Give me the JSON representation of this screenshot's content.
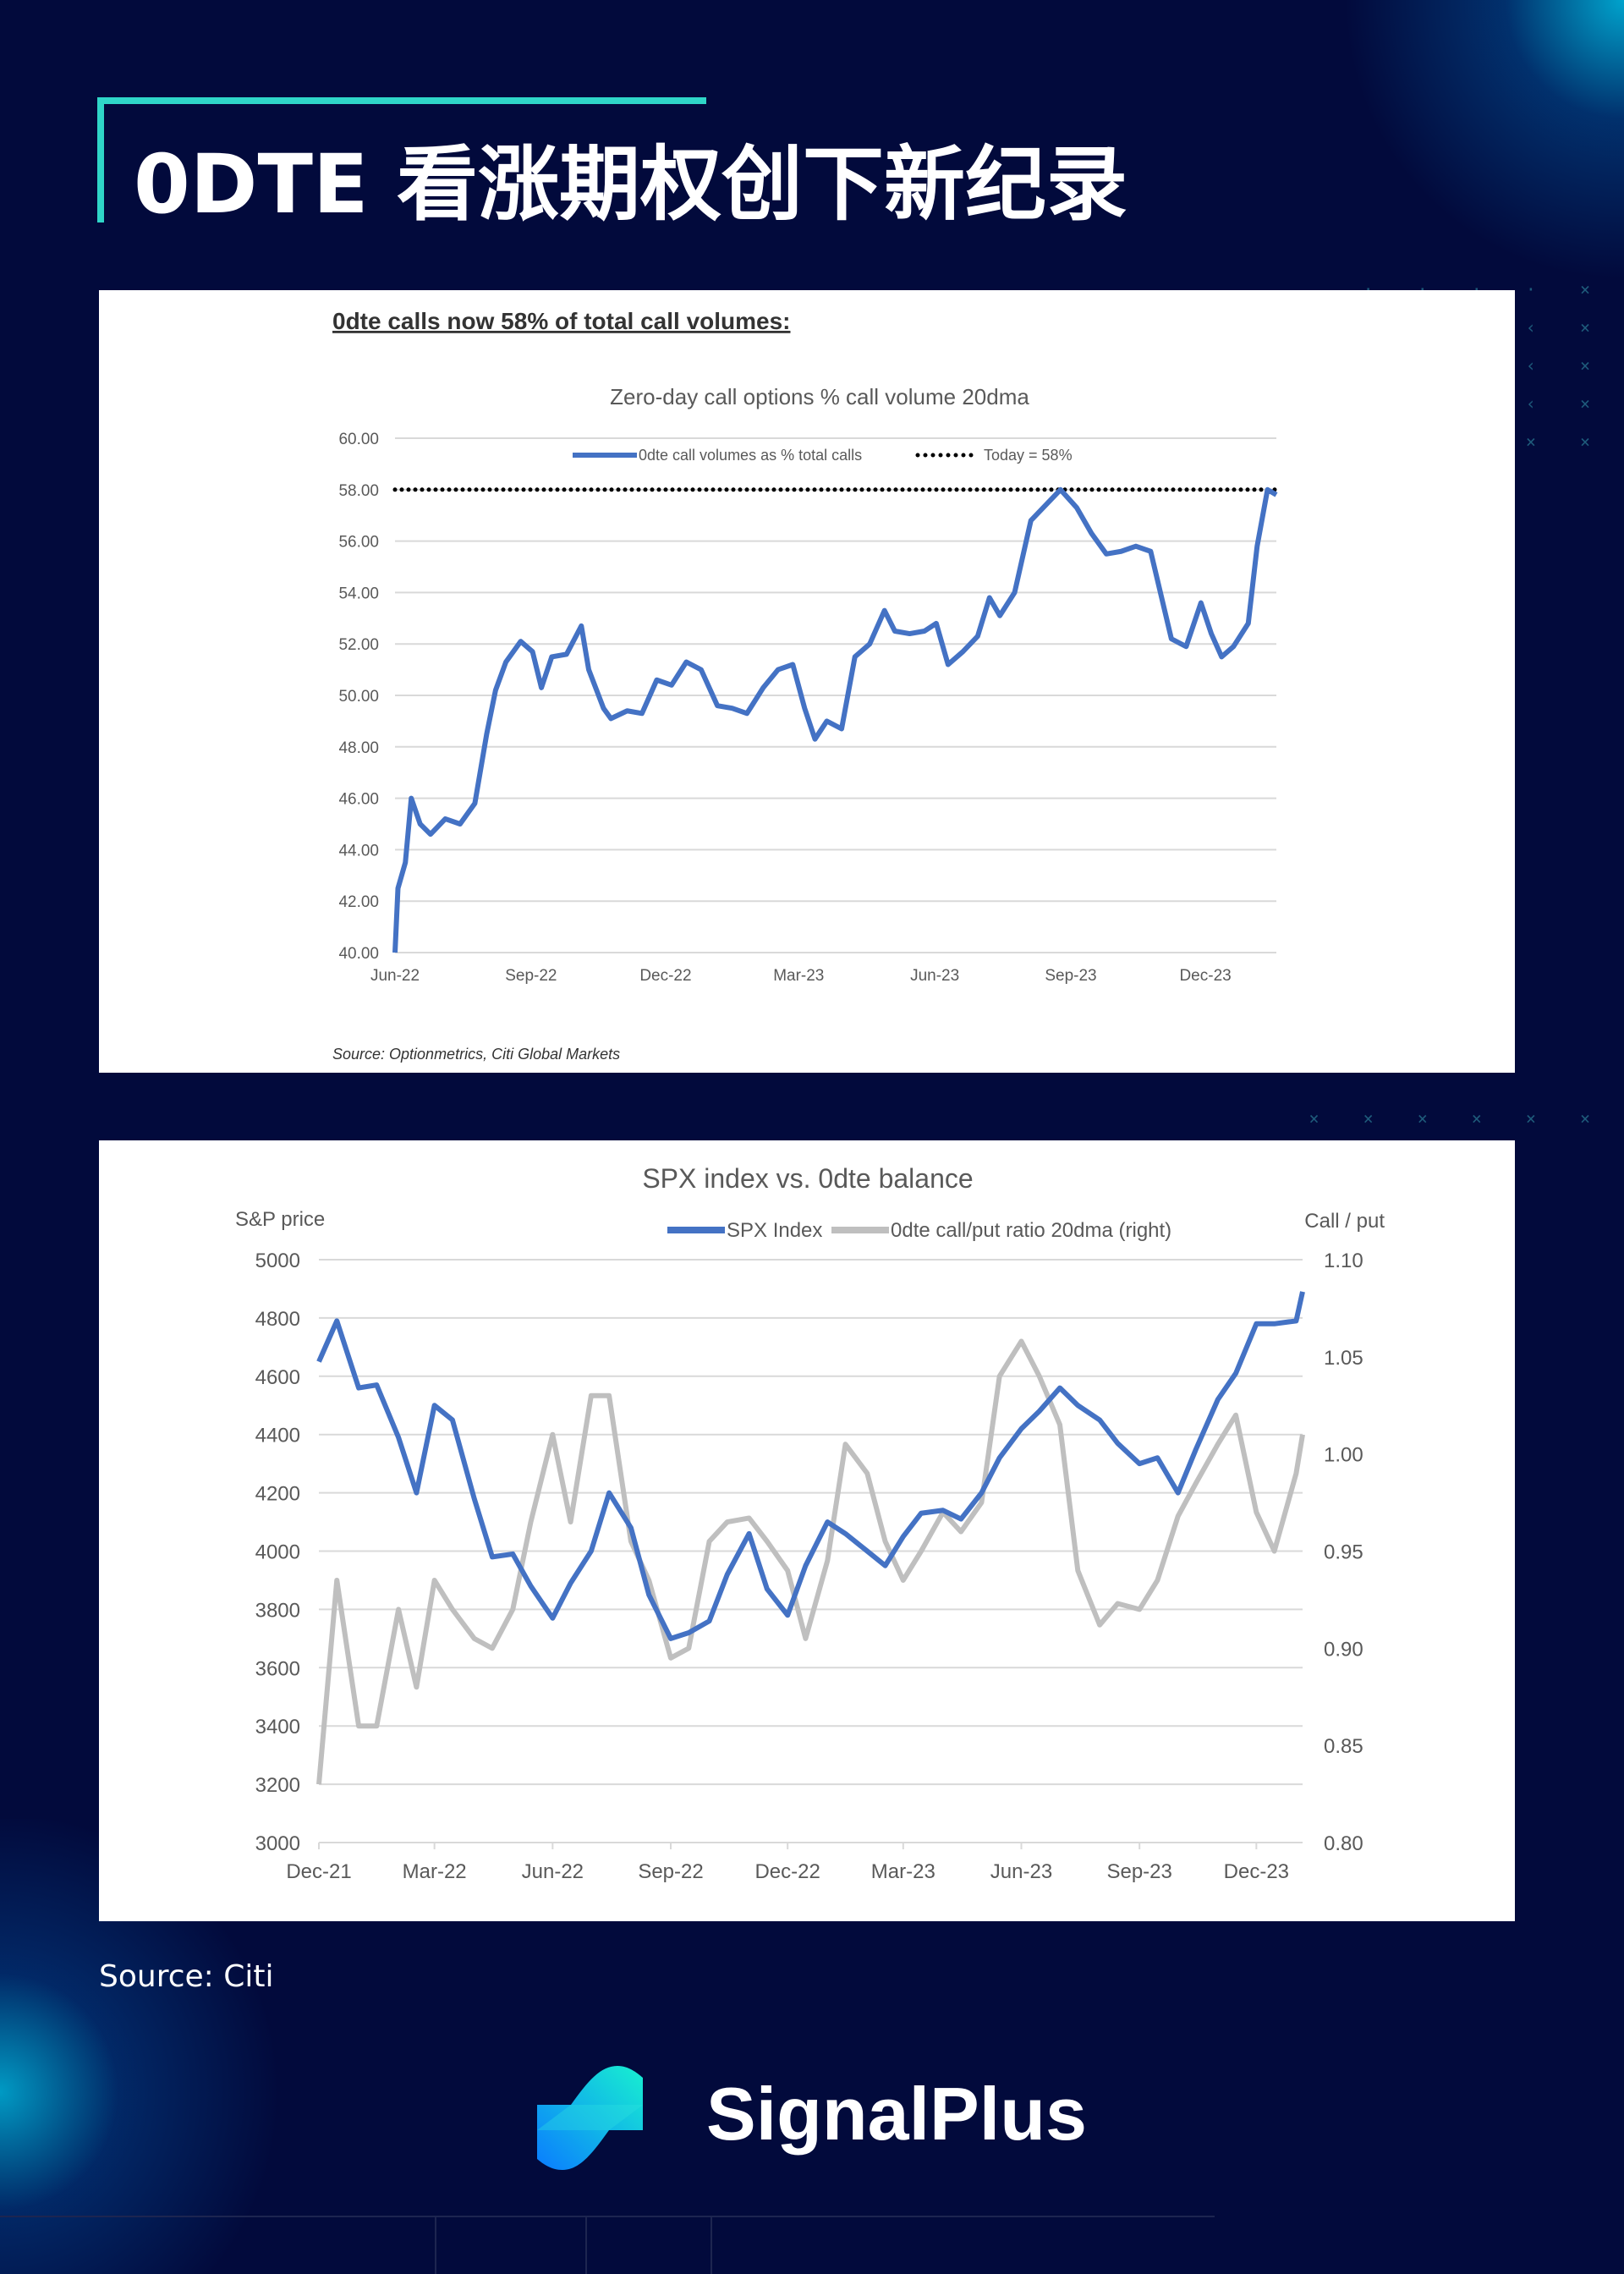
{
  "page": {
    "title": "0DTE 看涨期权创下新纪录",
    "source": "Source: Citi",
    "brand": "SignalPlus",
    "colors": {
      "background": "#020a3c",
      "accent": "#2fd6c8",
      "series_blue": "#4472c4",
      "series_grey": "#bfbfbf"
    }
  },
  "chart_data": [
    {
      "type": "line",
      "headline": "0dte calls now 58% of total call volumes:",
      "title": "Zero-day call options % call volume 20dma",
      "source": "Source: Optionmetrics, Citi Global Markets",
      "ylim": [
        40,
        60
      ],
      "yticks": [
        "40.00",
        "42.00",
        "44.00",
        "46.00",
        "48.00",
        "50.00",
        "52.00",
        "54.00",
        "56.00",
        "58.00",
        "60.00"
      ],
      "xticks": [
        {
          "label": "Jun-22",
          "date": "2022-06-01"
        },
        {
          "label": "Sep-22",
          "date": "2022-09-01"
        },
        {
          "label": "Dec-22",
          "date": "2022-12-01"
        },
        {
          "label": "Mar-23",
          "date": "2023-03-01"
        },
        {
          "label": "Jun-23",
          "date": "2023-06-01"
        },
        {
          "label": "Sep-23",
          "date": "2023-09-01"
        },
        {
          "label": "Dec-23",
          "date": "2023-12-01"
        }
      ],
      "grid": true,
      "legend_position": "top",
      "reference_line": {
        "name": "Today = 58%",
        "value": 58,
        "style": "dotted",
        "color": "#000000"
      },
      "series": [
        {
          "name": "0dte call volumes as % total calls",
          "color": "#4472c4",
          "x": [
            "2022-06-01",
            "2022-06-03",
            "2022-06-08",
            "2022-06-12",
            "2022-06-18",
            "2022-06-25",
            "2022-07-05",
            "2022-07-15",
            "2022-07-25",
            "2022-08-02",
            "2022-08-08",
            "2022-08-15",
            "2022-08-25",
            "2022-09-02",
            "2022-09-08",
            "2022-09-15",
            "2022-09-25",
            "2022-10-05",
            "2022-10-10",
            "2022-10-20",
            "2022-10-25",
            "2022-11-05",
            "2022-11-15",
            "2022-11-25",
            "2022-12-05",
            "2022-12-15",
            "2022-12-25",
            "2023-01-05",
            "2023-01-15",
            "2023-01-25",
            "2023-02-05",
            "2023-02-15",
            "2023-02-25",
            "2023-03-05",
            "2023-03-12",
            "2023-03-20",
            "2023-03-30",
            "2023-04-08",
            "2023-04-18",
            "2023-04-28",
            "2023-05-05",
            "2023-05-15",
            "2023-05-25",
            "2023-06-02",
            "2023-06-10",
            "2023-06-20",
            "2023-06-30",
            "2023-07-08",
            "2023-07-15",
            "2023-07-25",
            "2023-08-05",
            "2023-08-15",
            "2023-08-25",
            "2023-09-05",
            "2023-09-15",
            "2023-09-25",
            "2023-10-05",
            "2023-10-15",
            "2023-10-25",
            "2023-11-01",
            "2023-11-08",
            "2023-11-18",
            "2023-11-28",
            "2023-12-05",
            "2023-12-12",
            "2023-12-20",
            "2023-12-30",
            "2024-01-05",
            "2024-01-12",
            "2024-01-18"
          ],
          "values": [
            40,
            42.5,
            43.5,
            46,
            45,
            44.6,
            45.2,
            45,
            45.8,
            48.5,
            50.2,
            51.3,
            52.1,
            51.7,
            50.3,
            51.5,
            51.6,
            52.7,
            51,
            49.5,
            49.1,
            49.4,
            49.3,
            50.6,
            50.4,
            51.3,
            51,
            49.6,
            49.5,
            49.3,
            50.3,
            51,
            51.2,
            49.5,
            48.3,
            49,
            48.7,
            51.5,
            52,
            53.3,
            52.5,
            52.4,
            52.5,
            52.8,
            51.2,
            51.7,
            52.3,
            53.8,
            53.1,
            54,
            56.8,
            57.4,
            58,
            57.3,
            56.3,
            55.5,
            55.6,
            55.8,
            55.6,
            53.9,
            52.2,
            51.9,
            53.6,
            52.4,
            51.5,
            51.9,
            52.8,
            55.8,
            58,
            57.8
          ]
        }
      ]
    },
    {
      "type": "line",
      "title": "SPX index vs. 0dte balance",
      "ylabel_left": "S&P price",
      "ylabel_right": "Call / put",
      "ylim_left": [
        3000,
        5000
      ],
      "ylim_right": [
        0.8,
        1.1
      ],
      "yticks_left": [
        "3000",
        "3200",
        "3400",
        "3600",
        "3800",
        "4000",
        "4200",
        "4400",
        "4600",
        "4800",
        "5000"
      ],
      "yticks_right": [
        "0.80",
        "0.85",
        "0.90",
        "0.95",
        "1.00",
        "1.05",
        "1.10"
      ],
      "xticks": [
        {
          "label": "Dec-21",
          "date": "2021-12-01"
        },
        {
          "label": "Mar-22",
          "date": "2022-03-01"
        },
        {
          "label": "Jun-22",
          "date": "2022-06-01"
        },
        {
          "label": "Sep-22",
          "date": "2022-09-01"
        },
        {
          "label": "Dec-22",
          "date": "2022-12-01"
        },
        {
          "label": "Mar-23",
          "date": "2023-03-01"
        },
        {
          "label": "Jun-23",
          "date": "2023-06-01"
        },
        {
          "label": "Sep-23",
          "date": "2023-09-01"
        },
        {
          "label": "Dec-23",
          "date": "2023-12-01"
        }
      ],
      "grid": true,
      "legend_position": "top",
      "x": [
        "2021-12-01",
        "2021-12-15",
        "2022-01-01",
        "2022-01-15",
        "2022-02-01",
        "2022-02-15",
        "2022-03-01",
        "2022-03-15",
        "2022-04-01",
        "2022-04-15",
        "2022-05-01",
        "2022-05-15",
        "2022-06-01",
        "2022-06-15",
        "2022-07-01",
        "2022-07-15",
        "2022-08-01",
        "2022-08-15",
        "2022-09-01",
        "2022-09-15",
        "2022-10-01",
        "2022-10-15",
        "2022-11-01",
        "2022-11-15",
        "2022-12-01",
        "2022-12-15",
        "2023-01-01",
        "2023-01-15",
        "2023-02-01",
        "2023-02-15",
        "2023-03-01",
        "2023-03-15",
        "2023-04-01",
        "2023-04-15",
        "2023-05-01",
        "2023-05-15",
        "2023-06-01",
        "2023-06-15",
        "2023-07-01",
        "2023-07-15",
        "2023-08-01",
        "2023-08-15",
        "2023-09-01",
        "2023-09-15",
        "2023-10-01",
        "2023-10-15",
        "2023-11-01",
        "2023-11-15",
        "2023-12-01",
        "2023-12-15",
        "2024-01-01",
        "2024-01-06"
      ],
      "series": [
        {
          "name": "SPX Index",
          "axis": "left",
          "color": "#4472c4",
          "values": [
            4650,
            4790,
            4560,
            4570,
            4390,
            4200,
            4500,
            4450,
            4180,
            3980,
            3990,
            3880,
            3770,
            3890,
            4000,
            4200,
            4080,
            3850,
            3700,
            3720,
            3760,
            3920,
            4060,
            3870,
            3780,
            3950,
            4100,
            4060,
            4000,
            3950,
            4050,
            4130,
            4140,
            4110,
            4200,
            4320,
            4420,
            4480,
            4560,
            4500,
            4450,
            4370,
            4300,
            4320,
            4200,
            4350,
            4520,
            4610,
            4780,
            4780,
            4790,
            4890
          ]
        },
        {
          "name": "0dte call/put ratio 20dma (right)",
          "axis": "right",
          "color": "#bfbfbf",
          "values": [
            0.83,
            0.935,
            0.86,
            0.86,
            0.92,
            0.88,
            0.935,
            0.92,
            0.905,
            0.9,
            0.92,
            0.965,
            1.01,
            0.965,
            1.03,
            1.03,
            0.955,
            0.935,
            0.895,
            0.9,
            0.955,
            0.965,
            0.967,
            0.955,
            0.94,
            0.905,
            0.945,
            1.005,
            0.99,
            0.955,
            0.935,
            0.95,
            0.97,
            0.96,
            0.975,
            1.04,
            1.058,
            1.04,
            1.015,
            0.94,
            0.912,
            0.923,
            0.92,
            0.935,
            0.968,
            0.985,
            1.005,
            1.02,
            0.97,
            0.95,
            0.99,
            1.01
          ]
        }
      ]
    }
  ]
}
